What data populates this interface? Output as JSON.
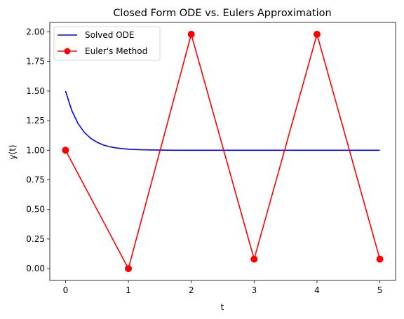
{
  "chart_data": {
    "type": "line",
    "title": "Closed Form ODE vs. Eulers Approximation",
    "xlabel": "t",
    "ylabel": "y(t)",
    "xlim": [
      -0.25,
      5.25
    ],
    "ylim": [
      -0.1,
      2.08
    ],
    "xticks": [
      0,
      1,
      2,
      3,
      4,
      5
    ],
    "xtick_labels": [
      "0",
      "1",
      "2",
      "3",
      "4",
      "5"
    ],
    "yticks": [
      0.0,
      0.25,
      0.5,
      0.75,
      1.0,
      1.25,
      1.5,
      1.75,
      2.0
    ],
    "ytick_labels": [
      "0.00",
      "0.25",
      "0.50",
      "0.75",
      "1.00",
      "1.25",
      "1.50",
      "1.75",
      "2.00"
    ],
    "grid": false,
    "legend_position": "top-left",
    "series": [
      {
        "name": "Solved ODE",
        "color": "#0000ff",
        "marker": "none",
        "x": [
          0,
          0.1,
          0.2,
          0.3,
          0.4,
          0.5,
          0.6,
          0.7,
          0.8,
          0.9,
          1.0,
          1.2,
          1.4,
          1.6,
          1.8,
          2.0,
          2.5,
          3.0,
          3.5,
          4.0,
          4.5,
          5.0
        ],
        "y": [
          1.5,
          1.335,
          1.225,
          1.151,
          1.101,
          1.068,
          1.045,
          1.03,
          1.02,
          1.014,
          1.009,
          1.004,
          1.002,
          1.001,
          1.0,
          1.0,
          1.0,
          1.0,
          1.0,
          1.0,
          1.0,
          1.0
        ]
      },
      {
        "name": "Euler's Method",
        "color": "#ff0000",
        "marker": "circle",
        "x": [
          0,
          1,
          2,
          3,
          4,
          5
        ],
        "y": [
          1.0,
          0.0,
          1.98,
          0.08,
          1.98,
          0.08
        ]
      }
    ]
  }
}
